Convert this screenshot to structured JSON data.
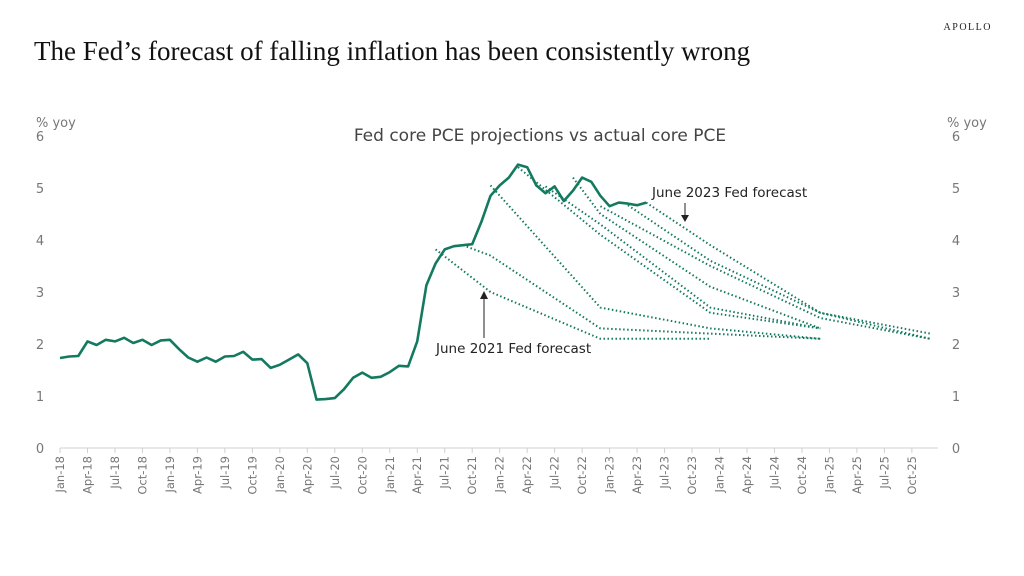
{
  "brand": "APOLLO",
  "title": "The Fed’s forecast of  falling inflation has been consistently wrong",
  "colors": {
    "series": "#137a5f",
    "axis": "#d0d0d0",
    "annotation": "#222222"
  },
  "chart_data": {
    "type": "line",
    "title": "Fed core PCE projections vs actual core PCE",
    "ylabel_left": "% yoy",
    "ylabel_right": "% yoy",
    "ylim": [
      0,
      6
    ],
    "yticks": [
      0,
      1,
      2,
      3,
      4,
      5,
      6
    ],
    "grid": false,
    "xticks": [
      "Jan-18",
      "Apr-18",
      "Jul-18",
      "Oct-18",
      "Jan-19",
      "Apr-19",
      "Jul-19",
      "Oct-19",
      "Jan-20",
      "Apr-20",
      "Jul-20",
      "Oct-20",
      "Jan-21",
      "Apr-21",
      "Jul-21",
      "Oct-21",
      "Jan-22",
      "Apr-22",
      "Jul-22",
      "Oct-22",
      "Jan-23",
      "Apr-23",
      "Jul-23",
      "Oct-23",
      "Jan-24",
      "Apr-24",
      "Jul-24",
      "Oct-24",
      "Jan-25",
      "Apr-25",
      "Jul-25",
      "Oct-25"
    ],
    "actual": {
      "start": "Jan-18",
      "values": [
        1.73,
        1.76,
        1.77,
        2.05,
        1.98,
        2.08,
        2.05,
        2.12,
        2.02,
        2.08,
        1.98,
        2.07,
        2.08,
        1.9,
        1.74,
        1.66,
        1.74,
        1.66,
        1.76,
        1.77,
        1.85,
        1.7,
        1.71,
        1.54,
        1.6,
        1.7,
        1.8,
        1.63,
        0.93,
        0.94,
        0.96,
        1.13,
        1.35,
        1.45,
        1.35,
        1.37,
        1.46,
        1.58,
        1.57,
        2.05,
        3.13,
        3.55,
        3.82,
        3.88,
        3.9,
        3.92,
        4.35,
        4.85,
        5.05,
        5.2,
        5.45,
        5.4,
        5.05,
        4.9,
        5.03,
        4.75,
        4.95,
        5.2,
        5.12,
        4.85,
        4.65,
        4.72,
        4.7,
        4.67,
        4.72
      ]
    },
    "forecasts": [
      {
        "points": [
          [
            "Jun-21",
            3.82
          ],
          [
            "Dec-21",
            3.0
          ],
          [
            "Dec-22",
            2.1
          ],
          [
            "Dec-23",
            2.1
          ]
        ]
      },
      {
        "points": [
          [
            "Sep-21",
            3.9
          ],
          [
            "Dec-21",
            3.7
          ],
          [
            "Dec-22",
            2.3
          ],
          [
            "Dec-23",
            2.2
          ],
          [
            "Dec-24",
            2.1
          ]
        ]
      },
      {
        "points": [
          [
            "Dec-21",
            5.05
          ],
          [
            "Dec-22",
            2.7
          ],
          [
            "Dec-23",
            2.3
          ],
          [
            "Dec-24",
            2.1
          ]
        ]
      },
      {
        "points": [
          [
            "Mar-22",
            5.4
          ],
          [
            "Dec-22",
            4.1
          ],
          [
            "Dec-23",
            2.6
          ],
          [
            "Dec-24",
            2.3
          ]
        ]
      },
      {
        "points": [
          [
            "Jun-22",
            5.03
          ],
          [
            "Dec-22",
            4.3
          ],
          [
            "Dec-23",
            2.7
          ],
          [
            "Dec-24",
            2.3
          ]
        ]
      },
      {
        "points": [
          [
            "Sep-22",
            5.2
          ],
          [
            "Dec-22",
            4.5
          ],
          [
            "Dec-23",
            3.1
          ],
          [
            "Dec-24",
            2.3
          ]
        ]
      },
      {
        "points": [
          [
            "Dec-22",
            4.65
          ],
          [
            "Dec-23",
            3.5
          ],
          [
            "Dec-24",
            2.5
          ],
          [
            "Dec-25",
            2.1
          ]
        ]
      },
      {
        "points": [
          [
            "Mar-23",
            4.67
          ],
          [
            "Dec-23",
            3.6
          ],
          [
            "Dec-24",
            2.6
          ],
          [
            "Dec-25",
            2.1
          ]
        ]
      },
      {
        "points": [
          [
            "May-23",
            4.72
          ],
          [
            "Dec-23",
            3.9
          ],
          [
            "Dec-24",
            2.6
          ],
          [
            "Dec-25",
            2.2
          ]
        ]
      }
    ],
    "annotations": [
      {
        "text": "June 2023 Fed forecast",
        "arrow": "down"
      },
      {
        "text": "June 2021 Fed forecast",
        "arrow": "up"
      }
    ]
  }
}
